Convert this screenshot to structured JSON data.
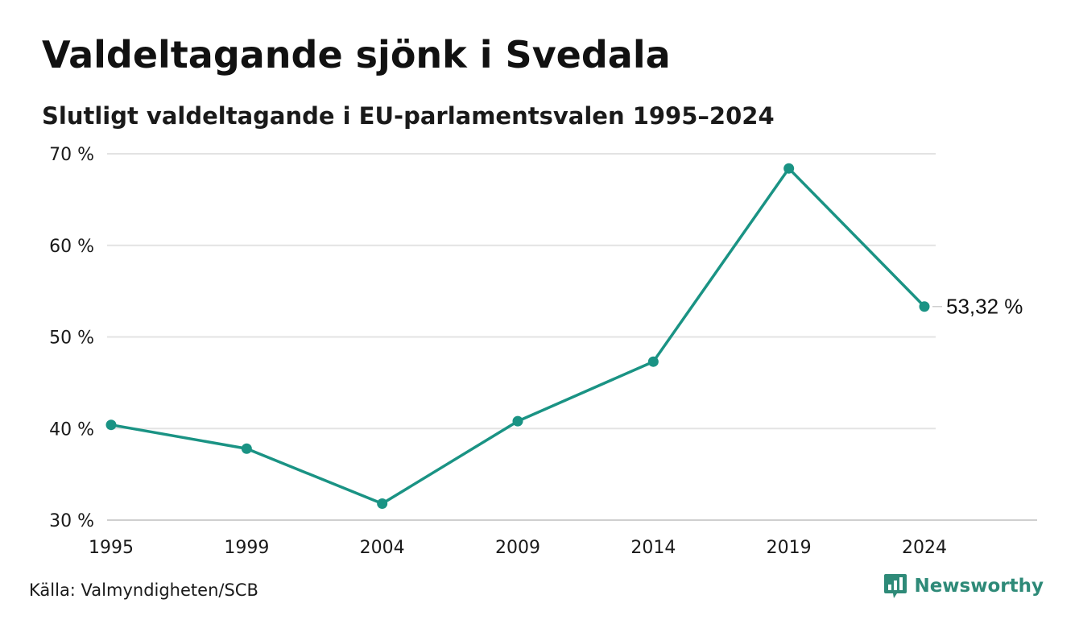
{
  "title": "Valdeltagande sjönk i Svedala",
  "subtitle": "Slutligt valdeltagande i EU-parlamentsvalen 1995–2024",
  "source": "Källa: Valmyndigheten/SCB",
  "brand": {
    "name": "Newsworthy",
    "icon": "chart-bubble-icon",
    "color": "#2e8a78"
  },
  "chart_data": {
    "type": "line",
    "x": [
      "1995",
      "1999",
      "2004",
      "2009",
      "2014",
      "2019",
      "2024"
    ],
    "series": [
      {
        "values": [
          40.4,
          37.8,
          31.8,
          40.8,
          47.3,
          68.4,
          53.32
        ],
        "color": "#1a9384"
      }
    ],
    "ylim": [
      30,
      70
    ],
    "yticks": [
      30,
      40,
      50,
      60,
      70
    ],
    "ytick_labels": [
      "30 %",
      "40 %",
      "50 %",
      "60 %",
      "70 %"
    ],
    "grid": true,
    "end_label": "53,32 %",
    "xlabel": "",
    "ylabel": ""
  }
}
